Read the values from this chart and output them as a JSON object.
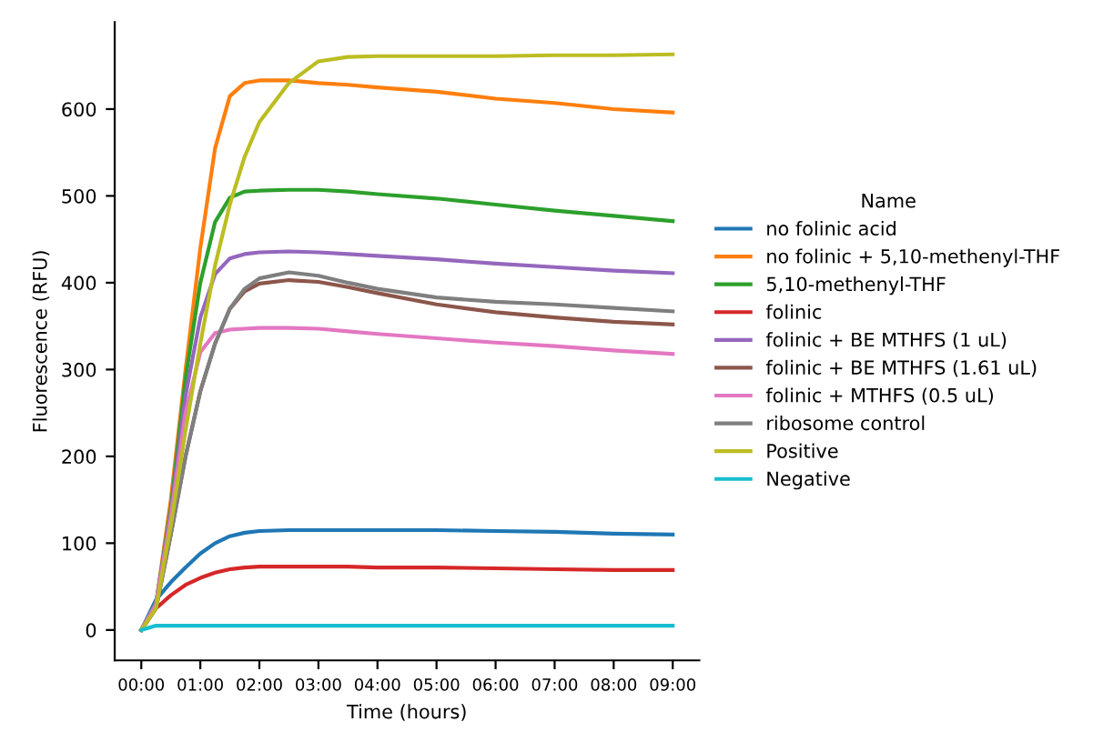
{
  "chart_data": {
    "type": "line",
    "xlabel": "Time (hours)",
    "ylabel": "Fluorescence (RFU)",
    "legend_title": "Name",
    "legend": "right",
    "grid": false,
    "marker": "none",
    "line_style": "solid",
    "x": [
      0,
      0.25,
      0.5,
      0.75,
      1,
      1.25,
      1.5,
      1.75,
      2,
      2.5,
      3,
      3.5,
      4,
      5,
      6,
      7,
      8,
      9
    ],
    "xlim": [
      -0.45,
      9.45
    ],
    "xticks": [
      {
        "value": 0,
        "label": "00:00"
      },
      {
        "value": 1,
        "label": "01:00"
      },
      {
        "value": 2,
        "label": "02:00"
      },
      {
        "value": 3,
        "label": "03:00"
      },
      {
        "value": 4,
        "label": "04:00"
      },
      {
        "value": 5,
        "label": "05:00"
      },
      {
        "value": 6,
        "label": "06:00"
      },
      {
        "value": 7,
        "label": "07:00"
      },
      {
        "value": 8,
        "label": "08:00"
      },
      {
        "value": 9,
        "label": "09:00"
      }
    ],
    "ylim": [
      -35,
      700
    ],
    "yticks": [
      0,
      100,
      200,
      300,
      400,
      500,
      600
    ],
    "series": [
      {
        "name": "no folinic acid",
        "color": "#1f77b4",
        "values": [
          0,
          35,
          55,
          72,
          88,
          100,
          108,
          112,
          114,
          115,
          115,
          115,
          115,
          115,
          114,
          113,
          111,
          110
        ]
      },
      {
        "name": "no folinic + 5,10-methenyl-THF",
        "color": "#ff7f0e",
        "values": [
          0,
          30,
          150,
          300,
          440,
          555,
          615,
          630,
          633,
          633,
          630,
          628,
          625,
          620,
          612,
          607,
          600,
          596
        ]
      },
      {
        "name": "5,10-methenyl-THF",
        "color": "#2ca02c",
        "values": [
          0,
          30,
          140,
          290,
          400,
          470,
          498,
          505,
          506,
          507,
          507,
          505,
          502,
          497,
          490,
          483,
          477,
          471
        ]
      },
      {
        "name": "folinic",
        "color": "#d62728",
        "values": [
          0,
          25,
          40,
          52,
          60,
          66,
          70,
          72,
          73,
          73,
          73,
          73,
          72,
          72,
          71,
          70,
          69,
          69
        ]
      },
      {
        "name": "folinic + BE MTHFS (1 uL)",
        "color": "#9467bd",
        "values": [
          0,
          30,
          135,
          270,
          360,
          410,
          428,
          433,
          435,
          436,
          435,
          433,
          431,
          427,
          422,
          418,
          414,
          411
        ]
      },
      {
        "name": "folinic + BE MTHFS (1.61 uL)",
        "color": "#8c564b",
        "values": [
          0,
          25,
          110,
          200,
          275,
          330,
          370,
          390,
          399,
          403,
          401,
          395,
          388,
          375,
          366,
          360,
          355,
          352
        ]
      },
      {
        "name": "folinic + MTHFS (0.5 uL)",
        "color": "#e377c2",
        "values": [
          0,
          30,
          130,
          250,
          320,
          342,
          346,
          347,
          348,
          348,
          347,
          344,
          341,
          336,
          331,
          327,
          322,
          318
        ]
      },
      {
        "name": "ribosome control",
        "color": "#7f7f7f",
        "values": [
          0,
          25,
          110,
          200,
          275,
          330,
          370,
          393,
          405,
          412,
          408,
          400,
          393,
          383,
          378,
          375,
          371,
          367
        ]
      },
      {
        "name": "Positive",
        "color": "#bcbd22",
        "values": [
          0,
          25,
          120,
          230,
          330,
          420,
          490,
          545,
          585,
          630,
          655,
          660,
          661,
          661,
          661,
          662,
          662,
          663
        ]
      },
      {
        "name": "Negative",
        "color": "#17becf",
        "values": [
          0,
          5,
          5,
          5,
          5,
          5,
          5,
          5,
          5,
          5,
          5,
          5,
          5,
          5,
          5,
          5,
          5,
          5
        ]
      }
    ]
  }
}
